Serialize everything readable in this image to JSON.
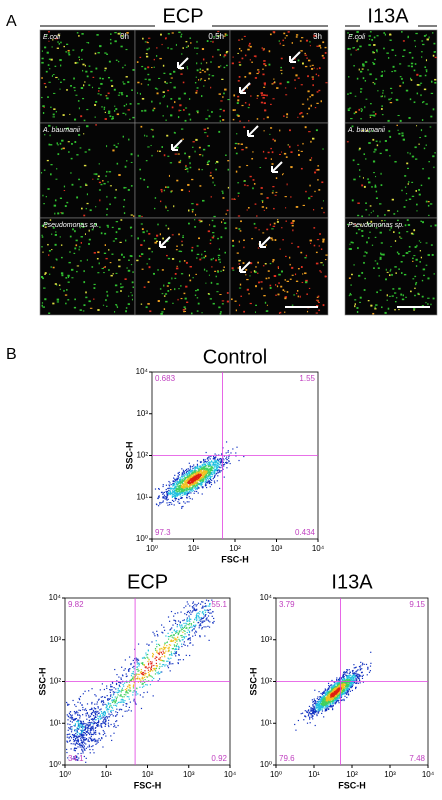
{
  "panel_a": {
    "label": "A",
    "groups": [
      {
        "title": "ECP"
      },
      {
        "title": "I13A"
      }
    ],
    "timepoints": [
      "0h",
      "0.5h",
      "3h"
    ],
    "species": [
      "E.coli",
      "A. baumanii",
      "Pseudomonas sp."
    ]
  },
  "panel_b": {
    "label": "B"
  },
  "chart_data": [
    {
      "type": "scatter",
      "title": "Control",
      "x_label": "FSC-H",
      "y_label": "SSC-H",
      "log_scale": true,
      "xlim": [
        1,
        10000
      ],
      "ylim": [
        1,
        10000
      ],
      "xticks": [
        {
          "value": 1,
          "label": "10⁰"
        },
        {
          "value": 10,
          "label": "10¹"
        },
        {
          "value": 100,
          "label": "10²"
        },
        {
          "value": 1000,
          "label": "10³"
        },
        {
          "value": 10000,
          "label": "10⁴"
        }
      ],
      "yticks": [
        {
          "value": 1,
          "label": "10⁰"
        },
        {
          "value": 10,
          "label": "10¹"
        },
        {
          "value": 100,
          "label": "10²"
        },
        {
          "value": 1000,
          "label": "10³"
        },
        {
          "value": 10000,
          "label": "10⁴"
        }
      ],
      "gate": {
        "x": 50,
        "y": 100
      },
      "gate_color": "#e040e0",
      "quadrants": {
        "upper_left": 0.683,
        "upper_right": 1.55,
        "lower_left": 97.3,
        "lower_right": 0.434
      }
    },
    {
      "type": "scatter",
      "title": "ECP",
      "x_label": "FSC-H",
      "y_label": "SSC-H",
      "log_scale": true,
      "xlim": [
        1,
        10000
      ],
      "ylim": [
        1,
        10000
      ],
      "xticks": [
        {
          "value": 1,
          "label": "10⁰"
        },
        {
          "value": 10,
          "label": "10¹"
        },
        {
          "value": 100,
          "label": "10²"
        },
        {
          "value": 1000,
          "label": "10³"
        },
        {
          "value": 10000,
          "label": "10⁴"
        }
      ],
      "yticks": [
        {
          "value": 1,
          "label": "10⁰"
        },
        {
          "value": 10,
          "label": "10¹"
        },
        {
          "value": 100,
          "label": "10²"
        },
        {
          "value": 1000,
          "label": "10³"
        },
        {
          "value": 10000,
          "label": "10⁴"
        }
      ],
      "gate": {
        "x": 50,
        "y": 100
      },
      "gate_color": "#e040e0",
      "quadrants": {
        "upper_left": 9.82,
        "upper_right": 55.1,
        "lower_left": 34.1,
        "lower_right": 0.92
      }
    },
    {
      "type": "scatter",
      "title": "I13A",
      "x_label": "FSC-H",
      "y_label": "SSC-H",
      "log_scale": true,
      "xlim": [
        1,
        10000
      ],
      "ylim": [
        1,
        10000
      ],
      "xticks": [
        {
          "value": 1,
          "label": "10⁰"
        },
        {
          "value": 10,
          "label": "10¹"
        },
        {
          "value": 100,
          "label": "10²"
        },
        {
          "value": 1000,
          "label": "10³"
        },
        {
          "value": 10000,
          "label": "10⁴"
        }
      ],
      "yticks": [
        {
          "value": 1,
          "label": "10⁰"
        },
        {
          "value": 10,
          "label": "10¹"
        },
        {
          "value": 100,
          "label": "10²"
        },
        {
          "value": 1000,
          "label": "10³"
        },
        {
          "value": 10000,
          "label": "10⁴"
        }
      ],
      "gate": {
        "x": 50,
        "y": 100
      },
      "gate_color": "#e040e0",
      "quadrants": {
        "upper_left": 3.79,
        "upper_right": 9.15,
        "lower_left": 79.6,
        "lower_right": 7.48
      }
    }
  ]
}
